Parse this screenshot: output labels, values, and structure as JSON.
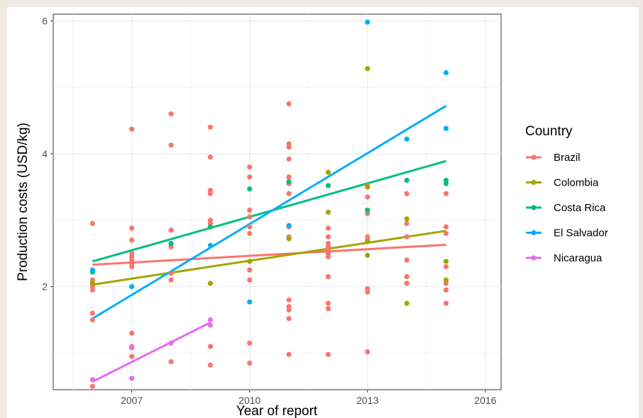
{
  "chart_data": {
    "type": "scatter",
    "xlabel": "Year of report",
    "ylabel": "Production costs (USD/kg)",
    "xlim": [
      2005.0,
      2016.4
    ],
    "ylim": [
      0.45,
      6.1
    ],
    "x_ticks": [
      2007,
      2010,
      2013,
      2016
    ],
    "y_ticks": [
      2,
      4,
      6
    ],
    "grid": true,
    "legend": {
      "title": "Country",
      "position": "right"
    },
    "series": [
      {
        "name": "Brazil",
        "color": "#F8766D",
        "points": [
          [
            2006,
            2.95
          ],
          [
            2006,
            2.1
          ],
          [
            2006,
            2.0
          ],
          [
            2006,
            1.95
          ],
          [
            2006,
            1.6
          ],
          [
            2006,
            1.5
          ],
          [
            2006,
            0.5
          ],
          [
            2007,
            4.37
          ],
          [
            2007,
            2.88
          ],
          [
            2007,
            2.7
          ],
          [
            2007,
            2.5
          ],
          [
            2007,
            2.45
          ],
          [
            2007,
            2.4
          ],
          [
            2007,
            2.35
          ],
          [
            2007,
            2.3
          ],
          [
            2007,
            1.3
          ],
          [
            2007,
            1.1
          ],
          [
            2007,
            0.95
          ],
          [
            2008,
            4.6
          ],
          [
            2008,
            4.13
          ],
          [
            2008,
            2.85
          ],
          [
            2008,
            2.6
          ],
          [
            2008,
            2.2
          ],
          [
            2008,
            2.1
          ],
          [
            2008,
            0.87
          ],
          [
            2009,
            4.4
          ],
          [
            2009,
            3.95
          ],
          [
            2009,
            3.45
          ],
          [
            2009,
            3.4
          ],
          [
            2009,
            3.0
          ],
          [
            2009,
            2.95
          ],
          [
            2009,
            2.9
          ],
          [
            2009,
            1.1
          ],
          [
            2009,
            0.82
          ],
          [
            2010,
            3.8
          ],
          [
            2010,
            3.65
          ],
          [
            2010,
            3.15
          ],
          [
            2010,
            3.05
          ],
          [
            2010,
            2.9
          ],
          [
            2010,
            2.8
          ],
          [
            2010,
            2.25
          ],
          [
            2010,
            2.1
          ],
          [
            2010,
            1.15
          ],
          [
            2010,
            0.85
          ],
          [
            2011,
            4.75
          ],
          [
            2011,
            4.15
          ],
          [
            2011,
            4.1
          ],
          [
            2011,
            3.92
          ],
          [
            2011,
            3.65
          ],
          [
            2011,
            3.55
          ],
          [
            2011,
            3.4
          ],
          [
            2011,
            2.9
          ],
          [
            2011,
            2.75
          ],
          [
            2011,
            1.8
          ],
          [
            2011,
            1.7
          ],
          [
            2011,
            1.65
          ],
          [
            2011,
            1.52
          ],
          [
            2011,
            0.98
          ],
          [
            2012,
            2.88
          ],
          [
            2012,
            2.75
          ],
          [
            2012,
            2.65
          ],
          [
            2012,
            2.6
          ],
          [
            2012,
            2.55
          ],
          [
            2012,
            2.5
          ],
          [
            2012,
            2.45
          ],
          [
            2012,
            2.15
          ],
          [
            2012,
            1.75
          ],
          [
            2012,
            1.67
          ],
          [
            2012,
            0.98
          ],
          [
            2013,
            3.52
          ],
          [
            2013,
            3.35
          ],
          [
            2013,
            3.1
          ],
          [
            2013,
            2.75
          ],
          [
            2013,
            2.7
          ],
          [
            2013,
            1.97
          ],
          [
            2013,
            1.92
          ],
          [
            2013,
            1.02
          ],
          [
            2014,
            3.4
          ],
          [
            2014,
            2.95
          ],
          [
            2014,
            2.75
          ],
          [
            2014,
            2.4
          ],
          [
            2014,
            2.15
          ],
          [
            2014,
            2.05
          ],
          [
            2015,
            3.4
          ],
          [
            2015,
            2.9
          ],
          [
            2015,
            2.8
          ],
          [
            2015,
            2.3
          ],
          [
            2015,
            2.05
          ],
          [
            2015,
            1.95
          ],
          [
            2015,
            1.75
          ]
        ],
        "trend": [
          [
            2006,
            2.33
          ],
          [
            2015,
            2.63
          ]
        ]
      },
      {
        "name": "Colombia",
        "color": "#A3A500",
        "points": [
          [
            2006,
            2.05
          ],
          [
            2009,
            2.05
          ],
          [
            2010,
            2.38
          ],
          [
            2011,
            2.72
          ],
          [
            2012,
            3.72
          ],
          [
            2012,
            3.12
          ],
          [
            2013,
            5.28
          ],
          [
            2013,
            3.5
          ],
          [
            2013,
            3.15
          ],
          [
            2013,
            2.68
          ],
          [
            2013,
            2.47
          ],
          [
            2014,
            3.02
          ],
          [
            2014,
            1.75
          ],
          [
            2015,
            2.38
          ],
          [
            2015,
            2.1
          ]
        ],
        "trend": [
          [
            2006,
            2.03
          ],
          [
            2015,
            2.84
          ]
        ]
      },
      {
        "name": "Costa Rica",
        "color": "#00BF7D",
        "points": [
          [
            2006,
            2.22
          ],
          [
            2008,
            2.65
          ],
          [
            2009,
            2.9
          ],
          [
            2010,
            3.47
          ],
          [
            2011,
            3.58
          ],
          [
            2012,
            3.52
          ],
          [
            2013,
            3.15
          ],
          [
            2014,
            3.6
          ],
          [
            2015,
            3.6
          ],
          [
            2015,
            3.55
          ]
        ],
        "trend": [
          [
            2006,
            2.38
          ],
          [
            2015,
            3.89
          ]
        ]
      },
      {
        "name": "El Salvador",
        "color": "#00B0F6",
        "points": [
          [
            2006,
            2.25
          ],
          [
            2007,
            2.0
          ],
          [
            2009,
            2.62
          ],
          [
            2010,
            1.77
          ],
          [
            2011,
            2.92
          ],
          [
            2013,
            5.98
          ],
          [
            2014,
            4.22
          ],
          [
            2015,
            5.22
          ],
          [
            2015,
            4.38
          ]
        ],
        "trend": [
          [
            2006,
            1.52
          ],
          [
            2015,
            4.72
          ]
        ]
      },
      {
        "name": "Nicaragua",
        "color": "#E76BF3",
        "points": [
          [
            2006,
            0.6
          ],
          [
            2007,
            1.08
          ],
          [
            2007,
            0.62
          ],
          [
            2008,
            1.15
          ],
          [
            2009,
            1.5
          ],
          [
            2009,
            1.42
          ]
        ],
        "trend": [
          [
            2006,
            0.57
          ],
          [
            2009,
            1.46
          ]
        ]
      }
    ]
  }
}
